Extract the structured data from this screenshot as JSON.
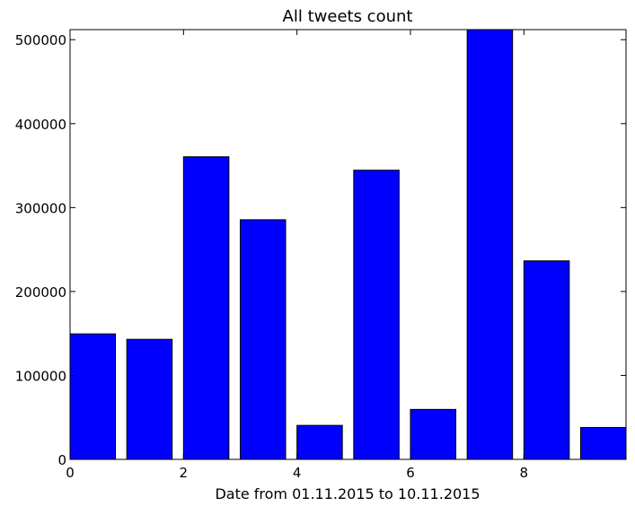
{
  "chart_data": {
    "type": "bar",
    "title": "All tweets count",
    "xlabel": "Date from 01.11.2015 to 10.11.2015",
    "ylabel": "",
    "x": [
      0,
      1,
      2,
      3,
      4,
      5,
      6,
      7,
      8,
      9
    ],
    "values": [
      149500,
      143000,
      360500,
      285500,
      40500,
      344500,
      59500,
      512000,
      236500,
      38000
    ],
    "bar_width": 0.8,
    "bar_align": "edge",
    "xlim": [
      0,
      9.8
    ],
    "ylim": [
      0,
      512000
    ],
    "xticks": [
      0,
      2,
      4,
      6,
      8
    ],
    "xtick_labels": [
      "0",
      "2",
      "4",
      "6",
      "8"
    ],
    "yticks": [
      0,
      100000,
      200000,
      300000,
      400000,
      500000
    ],
    "ytick_labels": [
      "0",
      "100000",
      "200000",
      "300000",
      "400000",
      "500000"
    ],
    "bar_color": "#0000ff",
    "edge_color": "#000000",
    "grid": false,
    "legend": "none"
  }
}
